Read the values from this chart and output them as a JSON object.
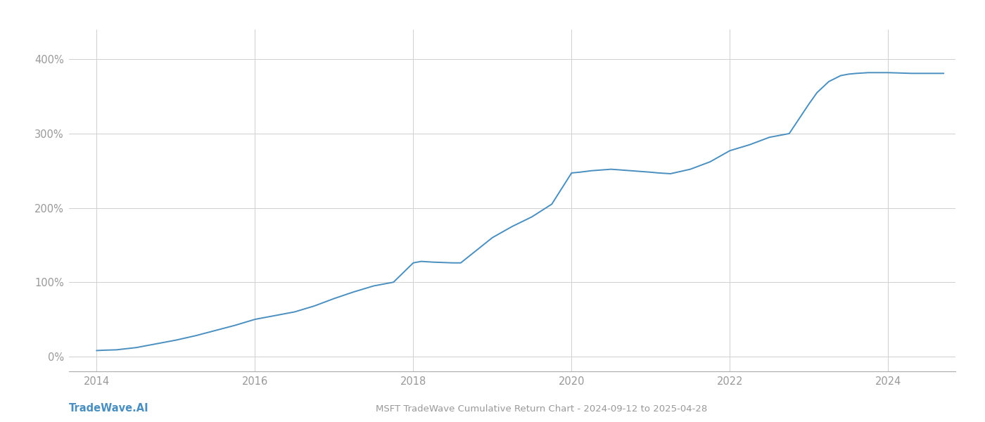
{
  "title": "MSFT TradeWave Cumulative Return Chart - 2024-09-12 to 2025-04-28",
  "watermark": "TradeWave.AI",
  "line_color": "#4a8fc0",
  "background_color": "#ffffff",
  "grid_color": "#d0d0d0",
  "tick_color": "#999999",
  "title_color": "#999999",
  "watermark_color": "#4a8fc0",
  "x_data": [
    2014.0,
    2014.1,
    2014.25,
    2014.5,
    2014.75,
    2015.0,
    2015.25,
    2015.5,
    2015.75,
    2016.0,
    2016.25,
    2016.5,
    2016.75,
    2017.0,
    2017.25,
    2017.5,
    2017.75,
    2018.0,
    2018.1,
    2018.25,
    2018.5,
    2018.6,
    2019.0,
    2019.25,
    2019.5,
    2019.75,
    2020.0,
    2020.1,
    2020.25,
    2020.5,
    2020.75,
    2021.0,
    2021.1,
    2021.25,
    2021.5,
    2021.75,
    2022.0,
    2022.25,
    2022.5,
    2022.75,
    2023.0,
    2023.1,
    2023.25,
    2023.4,
    2023.5,
    2023.6,
    2023.75,
    2024.0,
    2024.3,
    2024.5,
    2024.7
  ],
  "y_data": [
    8,
    8.5,
    9,
    12,
    17,
    22,
    28,
    35,
    42,
    50,
    55,
    60,
    68,
    78,
    87,
    95,
    100,
    126,
    128,
    127,
    126,
    126,
    160,
    175,
    188,
    205,
    247,
    248,
    250,
    252,
    250,
    248,
    247,
    246,
    252,
    262,
    277,
    285,
    295,
    300,
    340,
    355,
    370,
    378,
    380,
    381,
    382,
    382,
    381,
    381,
    381
  ],
  "xlim": [
    2013.65,
    2024.85
  ],
  "ylim": [
    -20,
    440
  ],
  "yticks": [
    0,
    100,
    200,
    300,
    400
  ],
  "ytick_labels": [
    "0%",
    "100%",
    "200%",
    "300%",
    "400%"
  ],
  "xticks": [
    2014,
    2016,
    2018,
    2020,
    2022,
    2024
  ],
  "xtick_labels": [
    "2014",
    "2016",
    "2018",
    "2020",
    "2022",
    "2024"
  ],
  "line_width": 1.4,
  "figsize": [
    14,
    6
  ],
  "dpi": 100
}
